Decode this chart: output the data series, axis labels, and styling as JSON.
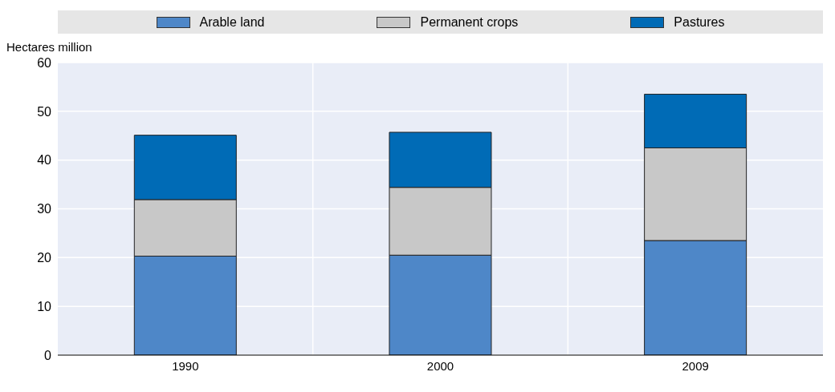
{
  "chart_data": {
    "type": "bar",
    "stacked": true,
    "ylabel": "Hectares million",
    "categories": [
      "1990",
      "2000",
      "2009"
    ],
    "series": [
      {
        "name": "Arable land",
        "color": "#4e87c8",
        "values": [
          20.3,
          20.5,
          23.5
        ]
      },
      {
        "name": "Permanent crops",
        "color": "#c8c8c8",
        "values": [
          11.6,
          13.9,
          19.0
        ]
      },
      {
        "name": "Pastures",
        "color": "#006bb6",
        "values": [
          13.2,
          11.3,
          11.0
        ]
      }
    ],
    "ylim": [
      0,
      60
    ],
    "yticks": [
      0,
      10,
      20,
      30,
      40,
      50,
      60
    ],
    "grid": true,
    "legend": "top"
  }
}
